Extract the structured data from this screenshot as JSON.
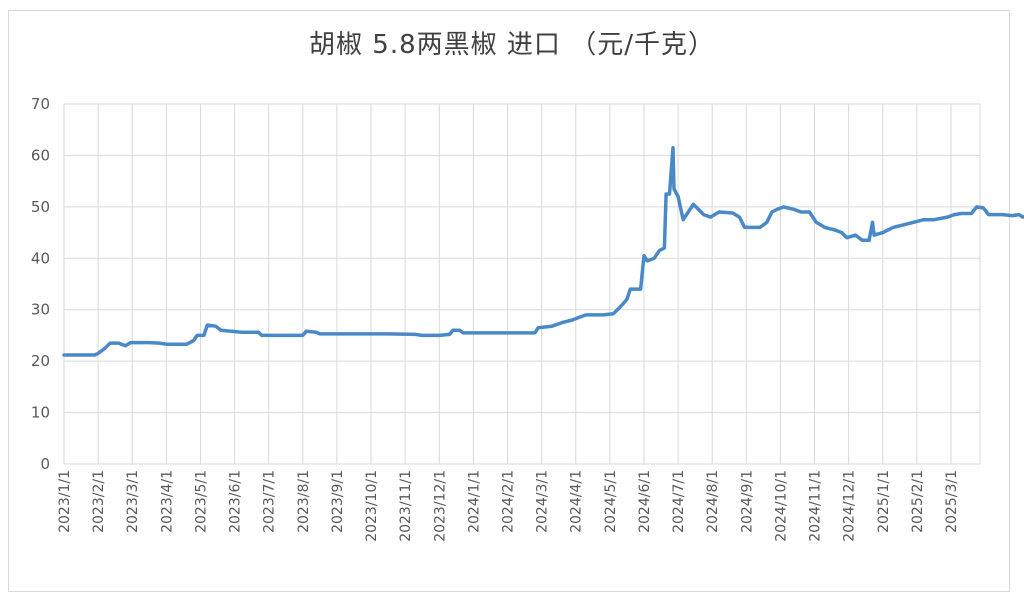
{
  "chart_data": {
    "type": "line",
    "title": "胡椒  5.8两黑椒 进口  （元/千克）",
    "xlabel": "",
    "ylabel": "",
    "ylim": [
      0,
      70
    ],
    "yticks": [
      "0",
      "10",
      "20",
      "30",
      "40",
      "50",
      "60",
      "70"
    ],
    "xticks": [
      "2023/1/1",
      "2023/2/1",
      "2023/3/1",
      "2023/4/1",
      "2023/5/1",
      "2023/6/1",
      "2023/7/1",
      "2023/8/1",
      "2023/9/1",
      "2023/10/1",
      "2023/11/1",
      "2023/12/1",
      "2024/1/1",
      "2024/2/1",
      "2024/3/1",
      "2024/4/1",
      "2024/5/1",
      "2024/6/1",
      "2024/7/1",
      "2024/8/1",
      "2024/9/1",
      "2024/10/1",
      "2024/11/1",
      "2024/12/1",
      "2025/1/1",
      "2025/2/1",
      "2025/3/1"
    ],
    "grid": true,
    "legend": "none",
    "line_color": "#4a89c8",
    "series": [
      {
        "values": [
          [
            0,
            21.2
          ],
          [
            0.9,
            21.2
          ],
          [
            1.0,
            21.5
          ],
          [
            1.2,
            22.5
          ],
          [
            1.35,
            23.5
          ],
          [
            1.6,
            23.5
          ],
          [
            1.8,
            23.0
          ],
          [
            1.95,
            23.6
          ],
          [
            2.5,
            23.6
          ],
          [
            2.8,
            23.5
          ],
          [
            3.0,
            23.3
          ],
          [
            3.6,
            23.3
          ],
          [
            3.8,
            24.0
          ],
          [
            3.9,
            25.0
          ],
          [
            4.1,
            25.0
          ],
          [
            4.2,
            27.0
          ],
          [
            4.45,
            26.8
          ],
          [
            4.6,
            26.0
          ],
          [
            4.9,
            25.8
          ],
          [
            5.2,
            25.6
          ],
          [
            5.7,
            25.6
          ],
          [
            5.8,
            25.0
          ],
          [
            6.5,
            25.0
          ],
          [
            7.0,
            25.0
          ],
          [
            7.1,
            25.8
          ],
          [
            7.4,
            25.6
          ],
          [
            7.5,
            25.3
          ],
          [
            8.5,
            25.3
          ],
          [
            9.5,
            25.3
          ],
          [
            10.3,
            25.2
          ],
          [
            10.5,
            25.0
          ],
          [
            11.0,
            25.0
          ],
          [
            11.3,
            25.2
          ],
          [
            11.4,
            26.0
          ],
          [
            11.6,
            26.0
          ],
          [
            11.7,
            25.5
          ],
          [
            12.5,
            25.5
          ],
          [
            13.5,
            25.5
          ],
          [
            13.8,
            25.5
          ],
          [
            13.9,
            26.5
          ],
          [
            14.3,
            26.8
          ],
          [
            14.6,
            27.5
          ],
          [
            14.9,
            28.0
          ],
          [
            15.1,
            28.5
          ],
          [
            15.3,
            29.0
          ],
          [
            15.8,
            29.0
          ],
          [
            16.1,
            29.2
          ],
          [
            16.3,
            30.5
          ],
          [
            16.5,
            32.0
          ],
          [
            16.6,
            34.0
          ],
          [
            16.9,
            34.0
          ],
          [
            17.0,
            40.5
          ],
          [
            17.1,
            39.5
          ],
          [
            17.3,
            40.0
          ],
          [
            17.45,
            41.5
          ],
          [
            17.6,
            42.0
          ],
          [
            17.65,
            52.5
          ],
          [
            17.75,
            52.5
          ],
          [
            17.85,
            61.5
          ],
          [
            17.88,
            53.5
          ],
          [
            18.0,
            52.0
          ],
          [
            18.15,
            47.5
          ],
          [
            18.3,
            49.0
          ],
          [
            18.45,
            50.5
          ],
          [
            18.6,
            49.5
          ],
          [
            18.75,
            48.5
          ],
          [
            18.95,
            48.0
          ],
          [
            19.2,
            49.0
          ],
          [
            19.6,
            48.8
          ],
          [
            19.8,
            48.0
          ],
          [
            19.95,
            46.0
          ],
          [
            20.4,
            46.0
          ],
          [
            20.6,
            47.0
          ],
          [
            20.75,
            49.0
          ],
          [
            20.9,
            49.5
          ],
          [
            21.1,
            50.0
          ],
          [
            21.4,
            49.5
          ],
          [
            21.6,
            49.0
          ],
          [
            21.85,
            49.0
          ],
          [
            22.05,
            47.0
          ],
          [
            22.3,
            46.0
          ],
          [
            22.6,
            45.5
          ],
          [
            22.8,
            45.0
          ],
          [
            22.95,
            44.0
          ],
          [
            23.2,
            44.5
          ],
          [
            23.4,
            43.5
          ],
          [
            23.6,
            43.5
          ],
          [
            23.7,
            47.0
          ],
          [
            23.75,
            44.5
          ],
          [
            24.0,
            45.0
          ],
          [
            24.3,
            46.0
          ],
          [
            24.6,
            46.5
          ],
          [
            24.9,
            47.0
          ],
          [
            25.2,
            47.5
          ],
          [
            25.5,
            47.5
          ],
          [
            25.9,
            48.0
          ],
          [
            26.1,
            48.5
          ],
          [
            26.3,
            48.7
          ],
          [
            26.6,
            48.7
          ],
          [
            26.75,
            50.0
          ],
          [
            26.95,
            49.8
          ],
          [
            27.1,
            48.5
          ],
          [
            27.5,
            48.5
          ],
          [
            27.8,
            48.3
          ],
          [
            28.0,
            48.5
          ],
          [
            28.1,
            48.0
          ],
          [
            28.3,
            48.3
          ],
          [
            28.5,
            48.5
          ],
          [
            28.7,
            48.5
          ],
          [
            29.0,
            49.0
          ]
        ]
      }
    ]
  }
}
